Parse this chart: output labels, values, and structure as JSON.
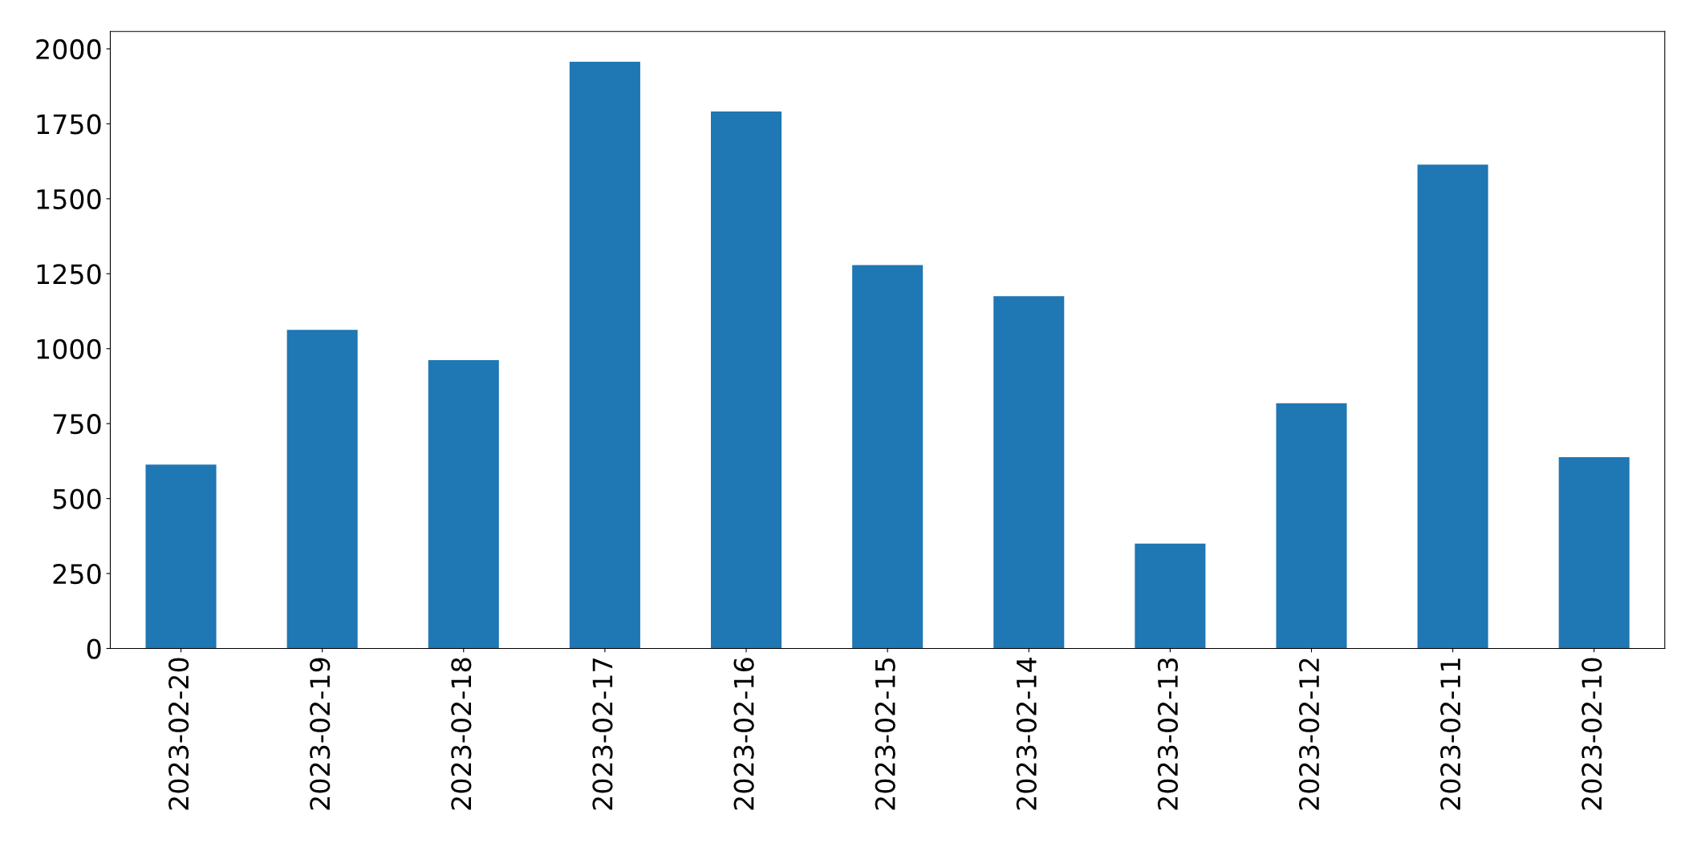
{
  "chart_data": {
    "type": "bar",
    "categories": [
      "2023-02-20",
      "2023-02-19",
      "2023-02-18",
      "2023-02-17",
      "2023-02-16",
      "2023-02-15",
      "2023-02-14",
      "2023-02-13",
      "2023-02-12",
      "2023-02-11",
      "2023-02-10"
    ],
    "values": [
      613,
      1063,
      962,
      1957,
      1791,
      1279,
      1175,
      350,
      818,
      1614,
      638
    ],
    "color": "#1f77b4",
    "ylim": [
      0,
      2058
    ],
    "yticks": [
      0,
      250,
      500,
      750,
      1000,
      1250,
      1500,
      1750,
      2000
    ],
    "grid": false
  }
}
